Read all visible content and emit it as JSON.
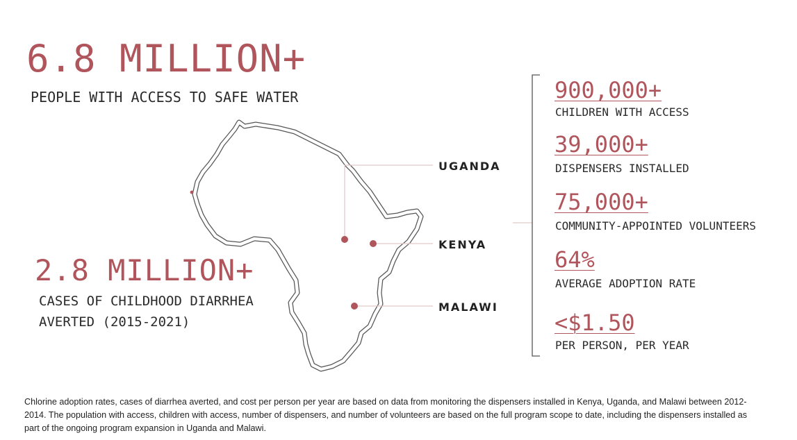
{
  "hero_primary": {
    "value": "6.8 MILLION+",
    "label": "PEOPLE WITH ACCESS TO SAFE WATER"
  },
  "hero_secondary": {
    "value": "2.8 MILLION+",
    "label": "CASES OF CHILDHOOD DIARRHEA AVERTED (2015-2021)"
  },
  "countries": {
    "uganda": "UGANDA",
    "kenya": "KENYA",
    "malawi": "MALAWI"
  },
  "stats": [
    {
      "value": "900,000+",
      "label": "CHILDREN WITH ACCESS"
    },
    {
      "value": "39,000+",
      "label": "DISPENSERS INSTALLED"
    },
    {
      "value": "75,000+",
      "label": "COMMUNITY-APPOINTED VOLUNTEERS"
    },
    {
      "value": "64%",
      "label": "AVERAGE ADOPTION RATE"
    },
    {
      "value": "<$1.50",
      "label": "PER PERSON, PER YEAR"
    }
  ],
  "footnote": "Chlorine adoption rates, cases of diarrhea averted, and cost per person per year are based on data from monitoring the dispensers installed in Kenya, Uganda, and Malawi between 2012-2014. The population with access, children with access, number of dispensers, and number of volunteers are based on the full program scope to date, including the dispensers installed as part of the ongoing program expansion in Uganda and Malawi.",
  "colors": {
    "accent": "#b0555c",
    "text": "#222222",
    "leader": "#e2c9cb",
    "outline": "#444444"
  }
}
